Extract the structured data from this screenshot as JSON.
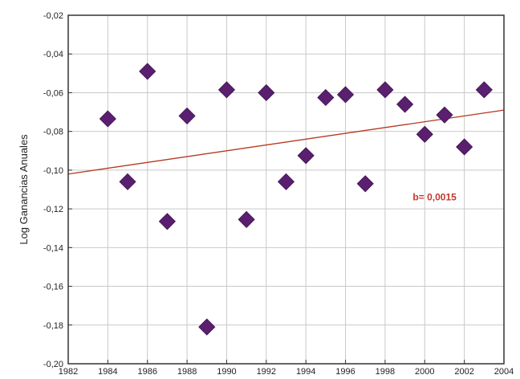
{
  "chart_data": {
    "type": "scatter",
    "title": "",
    "xlabel": "",
    "ylabel": "Log Ganancias Anuales",
    "xlim": [
      1982,
      2004
    ],
    "ylim": [
      -0.2,
      -0.02
    ],
    "x_ticks": [
      "1982",
      "1984",
      "1986",
      "1988",
      "1990",
      "1992",
      "1994",
      "1996",
      "1998",
      "2000",
      "2002",
      "2004"
    ],
    "y_ticks": [
      "-0,02",
      "-0,04",
      "-0,06",
      "-0,08",
      "-0,10",
      "-0,12",
      "-0,14",
      "-0,16",
      "-0,18",
      "-0,20"
    ],
    "grid": true,
    "legend": "none",
    "series": [
      {
        "marker": "diamond",
        "color": "#5a1f6e",
        "points": [
          {
            "x": 1984,
            "y": -0.0735
          },
          {
            "x": 1985,
            "y": -0.106
          },
          {
            "x": 1986,
            "y": -0.049
          },
          {
            "x": 1987,
            "y": -0.1265
          },
          {
            "x": 1988,
            "y": -0.072
          },
          {
            "x": 1989,
            "y": -0.181
          },
          {
            "x": 1990,
            "y": -0.0585
          },
          {
            "x": 1991,
            "y": -0.1255
          },
          {
            "x": 1992,
            "y": -0.06
          },
          {
            "x": 1993,
            "y": -0.106
          },
          {
            "x": 1994,
            "y": -0.0925
          },
          {
            "x": 1995,
            "y": -0.0625
          },
          {
            "x": 1996,
            "y": -0.061
          },
          {
            "x": 1997,
            "y": -0.107
          },
          {
            "x": 1998,
            "y": -0.0585
          },
          {
            "x": 1999,
            "y": -0.066
          },
          {
            "x": 2000,
            "y": -0.0815
          },
          {
            "x": 2001,
            "y": -0.0715
          },
          {
            "x": 2002,
            "y": -0.088
          },
          {
            "x": 2003,
            "y": -0.0585
          }
        ]
      }
    ],
    "trendline": {
      "color": "#b5381f",
      "x": [
        1982,
        2004
      ],
      "y": [
        -0.102,
        -0.069
      ]
    },
    "annotation": {
      "text": "b= 0,0015",
      "color": "#c0392b",
      "x": 2000.5,
      "y": -0.1155
    }
  }
}
